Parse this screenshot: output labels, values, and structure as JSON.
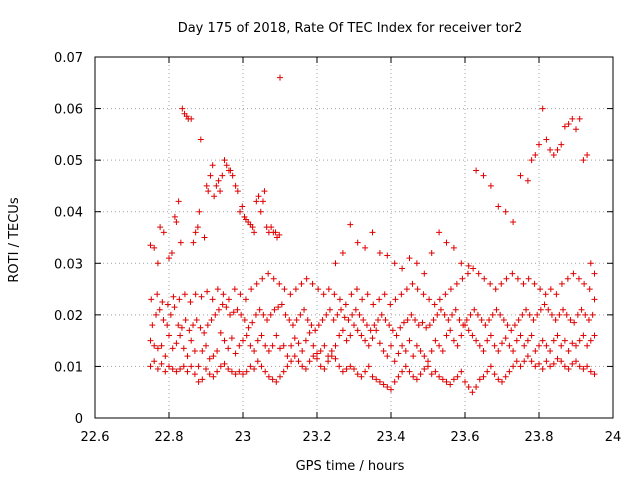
{
  "chart_data": {
    "type": "scatter",
    "title": "Day 175 of 2018, Rate Of TEC Index for receiver tor2",
    "xlabel": "GPS time / hours",
    "ylabel": "ROTI / TECUs",
    "xlim": [
      22.6,
      24
    ],
    "ylim": [
      0,
      0.07
    ],
    "x_ticks": [
      22.6,
      22.8,
      23,
      23.2,
      23.4,
      23.6,
      23.8,
      24
    ],
    "x_tick_labels": [
      "22.6",
      "22.8",
      "23",
      "23.2",
      "23.4",
      "23.6",
      "23.8",
      "24"
    ],
    "y_ticks": [
      0,
      0.01,
      0.02,
      0.03,
      0.04,
      0.05,
      0.06,
      0.07
    ],
    "y_tick_labels": [
      "0",
      "0.01",
      "0.02",
      "0.03",
      "0.04",
      "0.05",
      "0.06",
      "0.07"
    ],
    "grid": true,
    "marker": "+",
    "marker_color": "#e00000",
    "series": [
      {
        "name": "ROTI",
        "x": [
          22.75,
          22.76,
          22.77,
          22.78,
          22.79,
          22.8,
          22.81,
          22.82,
          22.83,
          22.84,
          22.85,
          22.86,
          22.87,
          22.88,
          22.89,
          22.9,
          22.91,
          22.92,
          22.93,
          22.94,
          22.95,
          22.96,
          22.97,
          22.98,
          22.99,
          23.0,
          23.01,
          23.02,
          23.03,
          23.04,
          23.05,
          23.06,
          23.07,
          23.08,
          23.09,
          23.1,
          23.11,
          23.12,
          23.13,
          23.14,
          23.15,
          23.16,
          23.17,
          23.18,
          23.19,
          23.2,
          23.21,
          23.22,
          23.23,
          23.24,
          23.25,
          23.26,
          23.27,
          23.28,
          23.29,
          23.3,
          23.31,
          23.32,
          23.33,
          23.34,
          23.35,
          23.36,
          23.37,
          23.38,
          23.39,
          23.4,
          23.41,
          23.42,
          23.43,
          23.44,
          23.45,
          23.46,
          23.47,
          23.48,
          23.49,
          23.5,
          23.51,
          23.52,
          23.53,
          23.54,
          23.55,
          23.56,
          23.57,
          23.58,
          23.59,
          23.6,
          23.61,
          23.62,
          23.63,
          23.64,
          23.65,
          23.66,
          23.67,
          23.68,
          23.69,
          23.7,
          23.71,
          23.72,
          23.73,
          23.74,
          23.75,
          23.76,
          23.77,
          23.78,
          23.79,
          23.8,
          23.81,
          23.82,
          23.83,
          23.84,
          23.85,
          23.86,
          23.87,
          23.88,
          23.89,
          23.9,
          23.91,
          23.92,
          23.93,
          23.94,
          23.95,
          22.75,
          22.76,
          22.77,
          22.78,
          22.79,
          22.8,
          22.81,
          22.82,
          22.83,
          22.84,
          22.85,
          22.86,
          22.87,
          22.88,
          22.89,
          22.9,
          22.91,
          22.92,
          22.93,
          22.94,
          22.95,
          22.96,
          22.97,
          22.98,
          22.99,
          23.0,
          23.01,
          23.02,
          23.03,
          23.04,
          23.05,
          23.06,
          23.07,
          23.08,
          23.09,
          23.1,
          23.11,
          23.12,
          23.13,
          23.14,
          23.15,
          23.16,
          23.17,
          23.18,
          23.19,
          23.2,
          23.21,
          23.22,
          23.23,
          23.24,
          23.25,
          23.26,
          23.27,
          23.28,
          23.29,
          23.3,
          23.31,
          23.32,
          23.33,
          23.34,
          23.35,
          23.36,
          23.37,
          23.38,
          23.39,
          23.4,
          23.41,
          23.42,
          23.43,
          23.44,
          23.45,
          23.46,
          23.47,
          23.48,
          23.49,
          23.5,
          23.51,
          23.52,
          23.53,
          23.54,
          23.55,
          23.56,
          23.57,
          23.58,
          23.59,
          23.6,
          23.61,
          23.62,
          23.63,
          23.64,
          23.65,
          23.66,
          23.67,
          23.68,
          23.69,
          23.7,
          23.71,
          23.72,
          23.73,
          23.74,
          23.75,
          23.76,
          23.77,
          23.78,
          23.79,
          23.8,
          23.81,
          23.82,
          23.83,
          23.84,
          23.85,
          23.86,
          23.87,
          23.88,
          23.89,
          23.9,
          23.91,
          23.92,
          23.93,
          23.94,
          23.95,
          22.755,
          22.765,
          22.775,
          22.785,
          22.795,
          22.805,
          22.815,
          22.825,
          22.835,
          22.845,
          22.855,
          22.865,
          22.875,
          22.885,
          22.895,
          22.905,
          22.915,
          22.925,
          22.935,
          22.945,
          22.955,
          22.965,
          22.975,
          22.985,
          22.995,
          23.005,
          23.015,
          23.025,
          23.035,
          23.045,
          23.055,
          23.065,
          23.075,
          23.085,
          23.095,
          23.105,
          23.115,
          23.125,
          23.135,
          23.145,
          23.155,
          23.165,
          23.175,
          23.185,
          23.195,
          23.205,
          23.215,
          23.225,
          23.235,
          23.245,
          23.255,
          23.265,
          23.275,
          23.285,
          23.295,
          23.305,
          23.315,
          23.325,
          23.335,
          23.345,
          23.355,
          23.365,
          23.375,
          23.385,
          23.395,
          23.405,
          23.415,
          23.425,
          23.435,
          23.445,
          23.455,
          23.465,
          23.475,
          23.485,
          23.495,
          23.505,
          23.515,
          23.525,
          23.535,
          23.545,
          23.555,
          23.565,
          23.575,
          23.585,
          23.595,
          23.605,
          23.615,
          23.625,
          23.635,
          23.645,
          23.655,
          23.665,
          23.675,
          23.685,
          23.695,
          23.705,
          23.715,
          23.725,
          23.735,
          23.745,
          23.755,
          23.765,
          23.775,
          23.785,
          23.795,
          23.805,
          23.815,
          23.825,
          23.835,
          23.845,
          23.855,
          23.865,
          23.875,
          23.885,
          23.895,
          23.905,
          23.915,
          23.925,
          23.935,
          23.945,
          22.752,
          22.768,
          22.782,
          22.797,
          22.812,
          22.828,
          22.843,
          22.858,
          22.872,
          22.888,
          22.903,
          22.918,
          22.932,
          22.947,
          22.962,
          22.978,
          22.993,
          23.008,
          23.022,
          23.037,
          23.052,
          23.068,
          23.083,
          23.098,
          23.112,
          23.128,
          23.143,
          23.158,
          23.172,
          23.188,
          23.203,
          23.218,
          23.232,
          23.247,
          23.262,
          23.278,
          23.293,
          23.308,
          23.322,
          23.337,
          23.352,
          23.368,
          23.383,
          23.398,
          23.412,
          23.428,
          23.443,
          23.458,
          23.472,
          23.488,
          23.503,
          23.518,
          23.532,
          23.547,
          23.562,
          23.578,
          23.593,
          23.608,
          23.622,
          23.637,
          23.652,
          23.668,
          23.683,
          23.698,
          23.712,
          23.728,
          23.743,
          23.758,
          23.772,
          23.788,
          23.803,
          23.818,
          23.832,
          23.847,
          23.862,
          23.878,
          23.893,
          23.908,
          23.922,
          23.937,
          23.95,
          22.75,
          22.76,
          22.77,
          22.776,
          22.786,
          22.8,
          22.808,
          22.816,
          22.82,
          22.826,
          22.832,
          22.836,
          22.842,
          22.848,
          22.852,
          22.86,
          22.866,
          22.872,
          22.878,
          22.882,
          22.886,
          22.896,
          22.902,
          22.906,
          22.912,
          22.918,
          22.922,
          22.928,
          22.934,
          22.938,
          22.944,
          22.95,
          22.956,
          22.962,
          22.966,
          22.972,
          22.98,
          22.986,
          22.992,
          22.998,
          23.004,
          23.008,
          23.014,
          23.02,
          23.026,
          23.03,
          23.036,
          23.042,
          23.048,
          23.054,
          23.058,
          23.064,
          23.07,
          23.076,
          23.082,
          23.088,
          23.092,
          23.098,
          23.1,
          23.25,
          23.27,
          23.29,
          23.31,
          23.33,
          23.35,
          23.37,
          23.39,
          23.41,
          23.43,
          23.45,
          23.47,
          23.49,
          23.51,
          23.53,
          23.55,
          23.57,
          23.59,
          23.61,
          23.63,
          23.65,
          23.67,
          23.69,
          23.71,
          23.73,
          23.75,
          23.77,
          23.78,
          23.79,
          23.8,
          23.81,
          23.82,
          23.83,
          23.84,
          23.85,
          23.86,
          23.87,
          23.88,
          23.89,
          23.9,
          23.91,
          23.92,
          23.93,
          23.94,
          23.95
        ],
        "y": [
          0.015,
          0.014,
          0.0135,
          0.014,
          0.012,
          0.016,
          0.0135,
          0.0145,
          0.016,
          0.0135,
          0.012,
          0.015,
          0.013,
          0.01,
          0.013,
          0.014,
          0.0115,
          0.012,
          0.013,
          0.0165,
          0.015,
          0.0135,
          0.0155,
          0.0125,
          0.014,
          0.015,
          0.016,
          0.014,
          0.013,
          0.015,
          0.016,
          0.014,
          0.013,
          0.014,
          0.016,
          0.0135,
          0.014,
          0.012,
          0.014,
          0.0155,
          0.0145,
          0.013,
          0.015,
          0.0165,
          0.014,
          0.0125,
          0.013,
          0.014,
          0.012,
          0.013,
          0.014,
          0.016,
          0.017,
          0.015,
          0.016,
          0.018,
          0.017,
          0.016,
          0.015,
          0.014,
          0.0155,
          0.017,
          0.0145,
          0.013,
          0.012,
          0.014,
          0.011,
          0.0125,
          0.014,
          0.013,
          0.015,
          0.012,
          0.014,
          0.013,
          0.012,
          0.011,
          0.013,
          0.015,
          0.014,
          0.013,
          0.016,
          0.017,
          0.015,
          0.014,
          0.016,
          0.018,
          0.017,
          0.016,
          0.015,
          0.014,
          0.013,
          0.015,
          0.016,
          0.014,
          0.013,
          0.0145,
          0.0155,
          0.014,
          0.013,
          0.015,
          0.016,
          0.014,
          0.015,
          0.016,
          0.013,
          0.014,
          0.015,
          0.014,
          0.013,
          0.015,
          0.016,
          0.014,
          0.015,
          0.013,
          0.0145,
          0.014,
          0.015,
          0.016,
          0.014,
          0.015,
          0.016,
          0.01,
          0.011,
          0.0095,
          0.0105,
          0.009,
          0.01,
          0.0095,
          0.009,
          0.0095,
          0.01,
          0.009,
          0.01,
          0.0085,
          0.007,
          0.0075,
          0.0095,
          0.0085,
          0.008,
          0.009,
          0.01,
          0.0105,
          0.0095,
          0.009,
          0.0085,
          0.009,
          0.0085,
          0.009,
          0.01,
          0.0095,
          0.011,
          0.01,
          0.009,
          0.008,
          0.0075,
          0.007,
          0.008,
          0.009,
          0.01,
          0.011,
          0.012,
          0.011,
          0.01,
          0.0095,
          0.011,
          0.012,
          0.0115,
          0.01,
          0.0095,
          0.011,
          0.012,
          0.0115,
          0.01,
          0.009,
          0.0095,
          0.01,
          0.0095,
          0.0085,
          0.008,
          0.009,
          0.01,
          0.008,
          0.0075,
          0.007,
          0.0065,
          0.006,
          0.0055,
          0.007,
          0.008,
          0.009,
          0.01,
          0.009,
          0.008,
          0.0075,
          0.0085,
          0.0095,
          0.01,
          0.0085,
          0.009,
          0.008,
          0.0075,
          0.007,
          0.0065,
          0.0075,
          0.008,
          0.009,
          0.007,
          0.006,
          0.005,
          0.006,
          0.0075,
          0.008,
          0.009,
          0.01,
          0.0085,
          0.0075,
          0.007,
          0.008,
          0.009,
          0.01,
          0.011,
          0.01,
          0.011,
          0.012,
          0.011,
          0.01,
          0.0105,
          0.0095,
          0.011,
          0.01,
          0.0105,
          0.0115,
          0.011,
          0.01,
          0.0095,
          0.0105,
          0.011,
          0.01,
          0.0095,
          0.01,
          0.009,
          0.0085,
          0.018,
          0.02,
          0.021,
          0.019,
          0.018,
          0.02,
          0.0215,
          0.018,
          0.0175,
          0.019,
          0.017,
          0.018,
          0.019,
          0.0175,
          0.0165,
          0.018,
          0.019,
          0.02,
          0.021,
          0.022,
          0.0215,
          0.02,
          0.0205,
          0.021,
          0.02,
          0.019,
          0.0175,
          0.0185,
          0.02,
          0.021,
          0.02,
          0.019,
          0.02,
          0.021,
          0.0215,
          0.022,
          0.02,
          0.019,
          0.018,
          0.019,
          0.02,
          0.021,
          0.019,
          0.018,
          0.017,
          0.018,
          0.019,
          0.02,
          0.021,
          0.019,
          0.02,
          0.021,
          0.0195,
          0.019,
          0.02,
          0.021,
          0.02,
          0.019,
          0.018,
          0.017,
          0.018,
          0.019,
          0.02,
          0.019,
          0.018,
          0.017,
          0.016,
          0.0175,
          0.0185,
          0.019,
          0.02,
          0.019,
          0.018,
          0.0185,
          0.0175,
          0.018,
          0.019,
          0.02,
          0.021,
          0.02,
          0.019,
          0.02,
          0.021,
          0.019,
          0.018,
          0.019,
          0.02,
          0.021,
          0.02,
          0.019,
          0.018,
          0.019,
          0.02,
          0.021,
          0.02,
          0.019,
          0.018,
          0.017,
          0.018,
          0.019,
          0.02,
          0.021,
          0.02,
          0.019,
          0.02,
          0.021,
          0.022,
          0.021,
          0.02,
          0.019,
          0.02,
          0.021,
          0.02,
          0.019,
          0.0185,
          0.02,
          0.021,
          0.02,
          0.019,
          0.02,
          0.023,
          0.024,
          0.0225,
          0.022,
          0.0235,
          0.023,
          0.024,
          0.0225,
          0.024,
          0.0235,
          0.0245,
          0.023,
          0.025,
          0.024,
          0.023,
          0.025,
          0.024,
          0.023,
          0.025,
          0.026,
          0.027,
          0.028,
          0.027,
          0.026,
          0.025,
          0.024,
          0.025,
          0.026,
          0.027,
          0.026,
          0.025,
          0.024,
          0.025,
          0.024,
          0.023,
          0.022,
          0.024,
          0.025,
          0.023,
          0.024,
          0.022,
          0.023,
          0.024,
          0.022,
          0.023,
          0.024,
          0.025,
          0.026,
          0.025,
          0.024,
          0.023,
          0.022,
          0.023,
          0.024,
          0.025,
          0.026,
          0.027,
          0.028,
          0.029,
          0.028,
          0.027,
          0.026,
          0.025,
          0.026,
          0.027,
          0.028,
          0.027,
          0.026,
          0.027,
          0.026,
          0.025,
          0.024,
          0.025,
          0.024,
          0.026,
          0.027,
          0.028,
          0.027,
          0.026,
          0.025,
          0.023,
          0.0335,
          0.033,
          0.03,
          0.037,
          0.036,
          0.031,
          0.032,
          0.039,
          0.038,
          0.042,
          0.034,
          0.06,
          0.059,
          0.0585,
          0.058,
          0.058,
          0.034,
          0.036,
          0.037,
          0.04,
          0.054,
          0.035,
          0.045,
          0.044,
          0.047,
          0.049,
          0.043,
          0.045,
          0.046,
          0.044,
          0.047,
          0.05,
          0.049,
          0.048,
          0.048,
          0.047,
          0.045,
          0.044,
          0.04,
          0.041,
          0.039,
          0.0385,
          0.038,
          0.0375,
          0.037,
          0.036,
          0.042,
          0.043,
          0.04,
          0.042,
          0.044,
          0.037,
          0.036,
          0.037,
          0.036,
          0.036,
          0.035,
          0.0355,
          0.066,
          0.03,
          0.032,
          0.0375,
          0.034,
          0.033,
          0.036,
          0.032,
          0.0315,
          0.03,
          0.029,
          0.031,
          0.03,
          0.028,
          0.032,
          0.036,
          0.034,
          0.033,
          0.03,
          0.0295,
          0.048,
          0.047,
          0.045,
          0.041,
          0.04,
          0.038,
          0.047,
          0.046,
          0.05,
          0.051,
          0.053,
          0.06,
          0.054,
          0.052,
          0.051,
          0.052,
          0.053,
          0.0565,
          0.057,
          0.058,
          0.056,
          0.058,
          0.05,
          0.051,
          0.03,
          0.028
        ]
      }
    ]
  }
}
